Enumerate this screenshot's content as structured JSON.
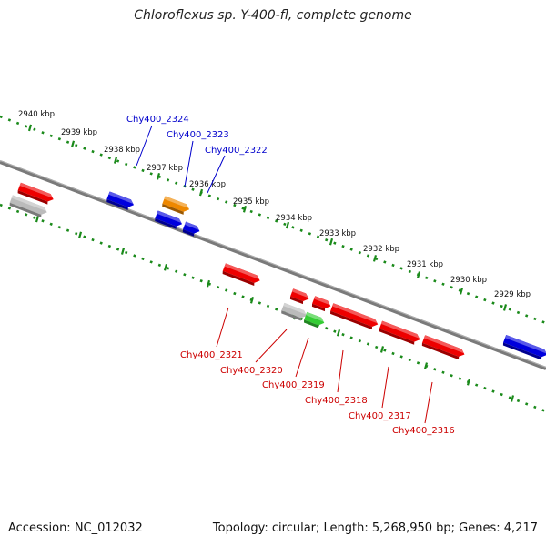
{
  "title": "Chloroflexus sp. Y-400-fl, complete genome",
  "footer": {
    "accession": "Accession: NC_012032",
    "topology": "Topology: circular; Length: 5,268,950 bp; Genes: 4,217"
  },
  "colors": {
    "backbone": "#7a7a7a",
    "dots": "#1a8a1a",
    "ticks": "#1a8a1a",
    "label_top": "#0000cc",
    "label_bottom": "#cc0000",
    "kbp_text": "#111111",
    "red": "#ee0000",
    "blue": "#0000dd",
    "orange": "#ee8800",
    "gray": "#bbbbbb",
    "green": "#33cc33"
  },
  "kbp_labels": [
    "2940 kbp",
    "2939 kbp",
    "2938 kbp",
    "2937 kbp",
    "2936 kbp",
    "2935 kbp",
    "2934 kbp",
    "2933 kbp",
    "2932 kbp",
    "2931 kbp",
    "2930 kbp",
    "2929 kbp"
  ],
  "gene_labels_top": [
    "Chy400_2324",
    "Chy400_2323",
    "Chy400_2322"
  ],
  "gene_labels_bottom": [
    "Chy400_2321",
    "Chy400_2320",
    "Chy400_2319",
    "Chy400_2318",
    "Chy400_2317",
    "Chy400_2316"
  ]
}
